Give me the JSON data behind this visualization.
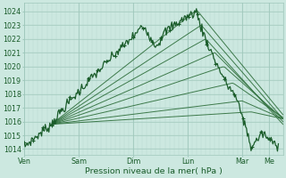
{
  "bg_color": "#cce8e0",
  "grid_color_minor": "#b8d8d0",
  "grid_color_major": "#a0c8bc",
  "line_color_dark": "#1a5c2a",
  "line_color_fc": "#2d6e3a",
  "ylabel_ticks": [
    1014,
    1015,
    1016,
    1017,
    1018,
    1019,
    1020,
    1021,
    1022,
    1023,
    1024
  ],
  "ylim": [
    1013.6,
    1024.6
  ],
  "xlim": [
    0,
    114
  ],
  "xlabel": "Pression niveau de la mer( hPa )",
  "day_labels": [
    "Ven",
    "Sam",
    "Dim",
    "Lun",
    "Mar",
    "Me"
  ],
  "day_positions": [
    0,
    24,
    48,
    72,
    96,
    108
  ],
  "tick_fontsize": 5.8,
  "xlabel_fontsize": 6.8
}
